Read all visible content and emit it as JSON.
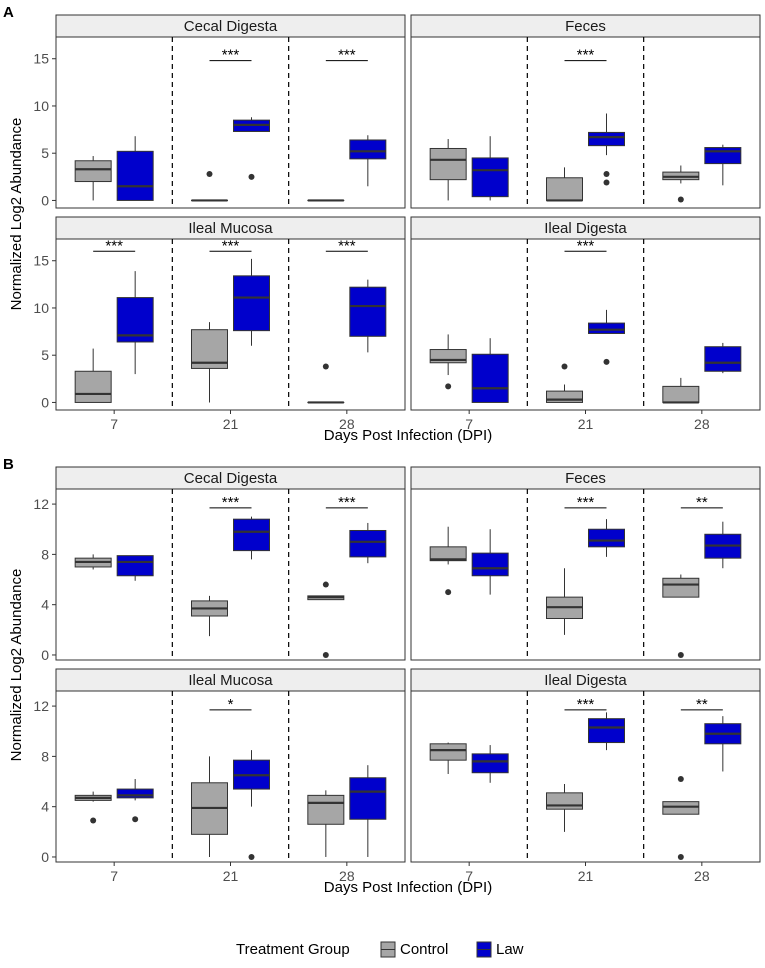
{
  "figure": {
    "ylabel": "Normalized Log2 Abundance",
    "xlabel": "Days Post Infection (DPI)",
    "legend": {
      "title": "Treatment Group",
      "placement": "bottom",
      "entries": [
        {
          "label": "Control",
          "color": "#a6a6a6"
        },
        {
          "label": "Law",
          "color": "#0000cc"
        }
      ]
    }
  },
  "chart_data": [
    {
      "type": "boxplot",
      "panel_letter": "A",
      "x_ticks": [
        "7",
        "21",
        "28"
      ],
      "ylim": [
        -0.8,
        17.3
      ],
      "y_ticks": [
        0,
        5,
        10,
        15
      ],
      "facets": [
        {
          "title": "Cecal Digesta",
          "series": [
            {
              "dpi": "7",
              "group": "Control",
              "min": 0,
              "q1": 2.0,
              "median": 3.3,
              "q3": 4.2,
              "max": 4.7,
              "outliers": []
            },
            {
              "dpi": "7",
              "group": "Law",
              "min": 0,
              "q1": 0,
              "median": 1.5,
              "q3": 5.2,
              "max": 6.8,
              "outliers": []
            },
            {
              "dpi": "21",
              "group": "Control",
              "min": 0,
              "q1": 0,
              "median": 0,
              "q3": 0,
              "max": 0,
              "outliers": [
                2.8
              ]
            },
            {
              "dpi": "21",
              "group": "Law",
              "min": 7.3,
              "q1": 7.3,
              "median": 8.0,
              "q3": 8.5,
              "max": 8.8,
              "outliers": [
                2.5
              ]
            },
            {
              "dpi": "28",
              "group": "Control",
              "min": 0,
              "q1": 0,
              "median": 0,
              "q3": 0,
              "max": 0,
              "outliers": []
            },
            {
              "dpi": "28",
              "group": "Law",
              "min": 1.5,
              "q1": 4.4,
              "median": 5.2,
              "q3": 6.4,
              "max": 6.9,
              "outliers": []
            }
          ],
          "significance": [
            {
              "dpi": "21",
              "label": "***",
              "y": 14.8
            },
            {
              "dpi": "28",
              "label": "***",
              "y": 14.8
            }
          ]
        },
        {
          "title": "Feces",
          "series": [
            {
              "dpi": "7",
              "group": "Control",
              "min": 0,
              "q1": 2.2,
              "median": 4.3,
              "q3": 5.5,
              "max": 6.5,
              "outliers": []
            },
            {
              "dpi": "7",
              "group": "Law",
              "min": 0,
              "q1": 0.4,
              "median": 3.2,
              "q3": 4.5,
              "max": 6.8,
              "outliers": []
            },
            {
              "dpi": "21",
              "group": "Control",
              "min": 0,
              "q1": 0,
              "median": 0,
              "q3": 2.4,
              "max": 3.5,
              "outliers": []
            },
            {
              "dpi": "21",
              "group": "Law",
              "min": 4.8,
              "q1": 5.8,
              "median": 6.7,
              "q3": 7.2,
              "max": 9.2,
              "outliers": [
                2.8,
                1.9
              ]
            },
            {
              "dpi": "28",
              "group": "Control",
              "min": 1.8,
              "q1": 2.2,
              "median": 2.5,
              "q3": 3.0,
              "max": 3.7,
              "outliers": [
                0.1
              ]
            },
            {
              "dpi": "28",
              "group": "Law",
              "min": 1.6,
              "q1": 3.9,
              "median": 5.2,
              "q3": 5.6,
              "max": 5.9,
              "outliers": []
            }
          ],
          "significance": [
            {
              "dpi": "21",
              "label": "***",
              "y": 14.8
            }
          ]
        },
        {
          "title": "Ileal Mucosa",
          "series": [
            {
              "dpi": "7",
              "group": "Control",
              "min": 0,
              "q1": 0,
              "median": 0.9,
              "q3": 3.3,
              "max": 5.7,
              "outliers": []
            },
            {
              "dpi": "7",
              "group": "Law",
              "min": 3.0,
              "q1": 6.4,
              "median": 7.1,
              "q3": 11.1,
              "max": 13.9,
              "outliers": []
            },
            {
              "dpi": "21",
              "group": "Control",
              "min": 0,
              "q1": 3.6,
              "median": 4.2,
              "q3": 7.7,
              "max": 8.5,
              "outliers": []
            },
            {
              "dpi": "21",
              "group": "Law",
              "min": 6.0,
              "q1": 7.6,
              "median": 11.1,
              "q3": 13.4,
              "max": 15.2,
              "outliers": []
            },
            {
              "dpi": "28",
              "group": "Control",
              "min": 0,
              "q1": 0,
              "median": 0,
              "q3": 0,
              "max": 0,
              "outliers": [
                3.8
              ]
            },
            {
              "dpi": "28",
              "group": "Law",
              "min": 5.3,
              "q1": 7.0,
              "median": 10.2,
              "q3": 12.2,
              "max": 13.0,
              "outliers": []
            }
          ],
          "significance": [
            {
              "dpi": "7",
              "label": "***",
              "y": 16.0
            },
            {
              "dpi": "21",
              "label": "***",
              "y": 16.0
            },
            {
              "dpi": "28",
              "label": "***",
              "y": 16.0
            }
          ]
        },
        {
          "title": "Ileal Digesta",
          "series": [
            {
              "dpi": "7",
              "group": "Control",
              "min": 2.9,
              "q1": 4.2,
              "median": 4.5,
              "q3": 5.6,
              "max": 7.2,
              "outliers": [
                1.7
              ]
            },
            {
              "dpi": "7",
              "group": "Law",
              "min": 0,
              "q1": 0,
              "median": 1.5,
              "q3": 5.1,
              "max": 6.8,
              "outliers": []
            },
            {
              "dpi": "21",
              "group": "Control",
              "min": 0,
              "q1": 0,
              "median": 0.3,
              "q3": 1.2,
              "max": 1.9,
              "outliers": [
                3.8
              ]
            },
            {
              "dpi": "21",
              "group": "Law",
              "min": 7.3,
              "q1": 7.3,
              "median": 7.7,
              "q3": 8.4,
              "max": 9.8,
              "outliers": [
                4.3
              ]
            },
            {
              "dpi": "28",
              "group": "Control",
              "min": 0,
              "q1": 0,
              "median": 0,
              "q3": 1.7,
              "max": 2.6,
              "outliers": []
            },
            {
              "dpi": "28",
              "group": "Law",
              "min": 3.1,
              "q1": 3.3,
              "median": 4.2,
              "q3": 5.9,
              "max": 6.3,
              "outliers": []
            }
          ],
          "significance": [
            {
              "dpi": "21",
              "label": "***",
              "y": 16.0
            }
          ]
        }
      ]
    },
    {
      "type": "boxplot",
      "panel_letter": "B",
      "x_ticks": [
        "7",
        "21",
        "28"
      ],
      "ylim": [
        -0.4,
        13.2
      ],
      "y_ticks": [
        0,
        4,
        8,
        12
      ],
      "facets": [
        {
          "title": "Cecal Digesta",
          "series": [
            {
              "dpi": "7",
              "group": "Control",
              "min": 6.8,
              "q1": 7.0,
              "median": 7.4,
              "q3": 7.7,
              "max": 8.0,
              "outliers": []
            },
            {
              "dpi": "7",
              "group": "Law",
              "min": 5.9,
              "q1": 6.3,
              "median": 7.4,
              "q3": 7.9,
              "max": 7.9,
              "outliers": []
            },
            {
              "dpi": "21",
              "group": "Control",
              "min": 1.5,
              "q1": 3.1,
              "median": 3.7,
              "q3": 4.3,
              "max": 4.7,
              "outliers": []
            },
            {
              "dpi": "21",
              "group": "Law",
              "min": 7.6,
              "q1": 8.3,
              "median": 9.8,
              "q3": 10.8,
              "max": 11.0,
              "outliers": []
            },
            {
              "dpi": "28",
              "group": "Control",
              "min": 4.4,
              "q1": 4.4,
              "median": 4.6,
              "q3": 4.7,
              "max": 4.7,
              "outliers": [
                5.6,
                0
              ]
            },
            {
              "dpi": "28",
              "group": "Law",
              "min": 7.3,
              "q1": 7.8,
              "median": 9.0,
              "q3": 9.9,
              "max": 10.5,
              "outliers": []
            }
          ],
          "significance": [
            {
              "dpi": "21",
              "label": "***",
              "y": 11.7
            },
            {
              "dpi": "28",
              "label": "***",
              "y": 11.7
            }
          ]
        },
        {
          "title": "Feces",
          "series": [
            {
              "dpi": "7",
              "group": "Control",
              "min": 7.2,
              "q1": 7.5,
              "median": 7.6,
              "q3": 8.6,
              "max": 10.2,
              "outliers": [
                5.0
              ]
            },
            {
              "dpi": "7",
              "group": "Law",
              "min": 4.8,
              "q1": 6.3,
              "median": 6.9,
              "q3": 8.1,
              "max": 10.0,
              "outliers": []
            },
            {
              "dpi": "21",
              "group": "Control",
              "min": 1.6,
              "q1": 2.9,
              "median": 3.8,
              "q3": 4.6,
              "max": 6.9,
              "outliers": []
            },
            {
              "dpi": "21",
              "group": "Law",
              "min": 7.8,
              "q1": 8.6,
              "median": 9.1,
              "q3": 10.0,
              "max": 10.8,
              "outliers": []
            },
            {
              "dpi": "28",
              "group": "Control",
              "min": 4.6,
              "q1": 4.6,
              "median": 5.6,
              "q3": 6.1,
              "max": 6.4,
              "outliers": [
                0
              ]
            },
            {
              "dpi": "28",
              "group": "Law",
              "min": 6.9,
              "q1": 7.7,
              "median": 8.7,
              "q3": 9.6,
              "max": 10.6,
              "outliers": []
            }
          ],
          "significance": [
            {
              "dpi": "21",
              "label": "***",
              "y": 11.7
            },
            {
              "dpi": "28",
              "label": "**",
              "y": 11.7
            }
          ]
        },
        {
          "title": "Ileal Mucosa",
          "series": [
            {
              "dpi": "7",
              "group": "Control",
              "min": 4.4,
              "q1": 4.5,
              "median": 4.7,
              "q3": 4.9,
              "max": 5.2,
              "outliers": [
                2.9
              ]
            },
            {
              "dpi": "7",
              "group": "Law",
              "min": 4.5,
              "q1": 4.7,
              "median": 4.9,
              "q3": 5.4,
              "max": 6.2,
              "outliers": [
                3.0
              ]
            },
            {
              "dpi": "21",
              "group": "Control",
              "min": 0,
              "q1": 1.8,
              "median": 3.9,
              "q3": 5.9,
              "max": 8.0,
              "outliers": []
            },
            {
              "dpi": "21",
              "group": "Law",
              "min": 4.0,
              "q1": 5.4,
              "median": 6.5,
              "q3": 7.7,
              "max": 8.5,
              "outliers": [
                0
              ]
            },
            {
              "dpi": "28",
              "group": "Control",
              "min": 0,
              "q1": 2.6,
              "median": 4.3,
              "q3": 4.9,
              "max": 5.3,
              "outliers": []
            },
            {
              "dpi": "28",
              "group": "Law",
              "min": 0,
              "q1": 3.0,
              "median": 5.2,
              "q3": 6.3,
              "max": 7.3,
              "outliers": []
            }
          ],
          "significance": [
            {
              "dpi": "21",
              "label": "*",
              "y": 11.7
            }
          ]
        },
        {
          "title": "Ileal Digesta",
          "series": [
            {
              "dpi": "7",
              "group": "Control",
              "min": 6.6,
              "q1": 7.7,
              "median": 8.5,
              "q3": 9.0,
              "max": 9.1,
              "outliers": []
            },
            {
              "dpi": "7",
              "group": "Law",
              "min": 5.9,
              "q1": 6.7,
              "median": 7.6,
              "q3": 8.2,
              "max": 8.9,
              "outliers": []
            },
            {
              "dpi": "21",
              "group": "Control",
              "min": 2.0,
              "q1": 3.8,
              "median": 4.1,
              "q3": 5.1,
              "max": 5.8,
              "outliers": []
            },
            {
              "dpi": "21",
              "group": "Law",
              "min": 8.5,
              "q1": 9.1,
              "median": 10.3,
              "q3": 11.0,
              "max": 11.5,
              "outliers": []
            },
            {
              "dpi": "28",
              "group": "Control",
              "min": 3.4,
              "q1": 3.4,
              "median": 4.0,
              "q3": 4.4,
              "max": 4.4,
              "outliers": [
                6.2,
                0
              ]
            },
            {
              "dpi": "28",
              "group": "Law",
              "min": 6.8,
              "q1": 9.0,
              "median": 9.8,
              "q3": 10.6,
              "max": 11.2,
              "outliers": []
            }
          ],
          "significance": [
            {
              "dpi": "21",
              "label": "***",
              "y": 11.7
            },
            {
              "dpi": "28",
              "label": "**",
              "y": 11.7
            }
          ]
        }
      ]
    }
  ]
}
